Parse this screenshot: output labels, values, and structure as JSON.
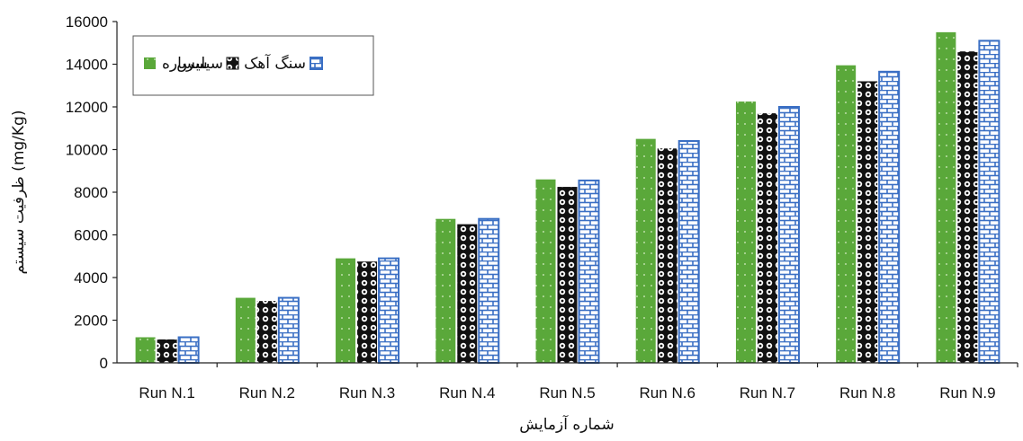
{
  "chart_data": {
    "type": "bar",
    "title": "",
    "xlabel": "شماره آزمایش",
    "ylabel": "ظرفیت سیستم (mg/Kg)",
    "ylim": [
      0,
      16000
    ],
    "yticks": [
      0,
      2000,
      4000,
      6000,
      8000,
      10000,
      12000,
      14000,
      16000
    ],
    "categories": [
      "Run N.1",
      "Run N.2",
      "Run N.3",
      "Run N.4",
      "Run N.5",
      "Run N.6",
      "Run N.7",
      "Run N.8",
      "Run N.9"
    ],
    "series": [
      {
        "name": "سرباره",
        "color": "#5aa83a",
        "pattern": "dots",
        "values": [
          1200,
          3050,
          4900,
          6750,
          8600,
          10500,
          12250,
          13950,
          15500
        ]
      },
      {
        "name": "سیلیس",
        "color": "#111111",
        "pattern": "circles",
        "values": [
          1100,
          2900,
          4750,
          6500,
          8250,
          10050,
          11700,
          13200,
          14600
        ]
      },
      {
        "name": "سنگ آهک",
        "color": "#3a6fc4",
        "pattern": "bricks",
        "values": [
          1200,
          3050,
          4900,
          6750,
          8550,
          10400,
          12000,
          13650,
          15100
        ]
      }
    ],
    "grid": false,
    "legend_position": "top-left"
  }
}
